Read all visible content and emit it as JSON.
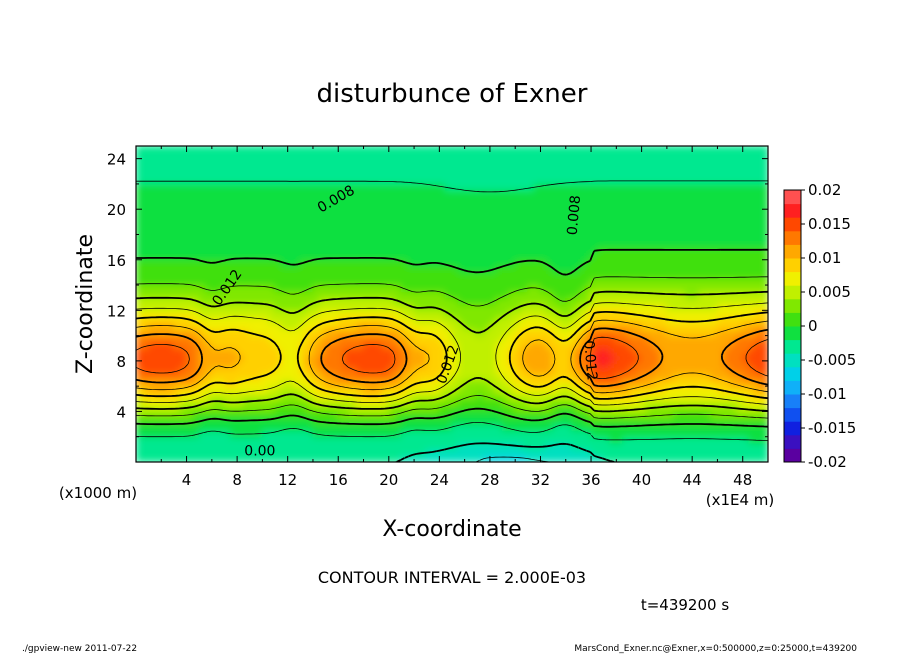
{
  "chart_data": {
    "type": "heatmap",
    "title": "disturbunce of Exner",
    "xlabel": "X-coordinate",
    "ylabel": "Z-coordinate",
    "x_unit_left": "(x1000 m)",
    "x_unit_right": "(x1E4 m)",
    "xlim": [
      0,
      50
    ],
    "ylim": [
      0,
      25
    ],
    "x_ticks": [
      4,
      8,
      12,
      16,
      20,
      24,
      28,
      32,
      36,
      40,
      44,
      48
    ],
    "y_ticks": [
      4,
      8,
      12,
      16,
      20,
      24
    ],
    "contour_interval_text": "CONTOUR INTERVAL = 2.000E-03",
    "time_text": "t=439200 s",
    "contour_labels": [
      {
        "text": "0.008",
        "x": 16,
        "y": 20.5,
        "angle": -30
      },
      {
        "text": "0.012",
        "x": 7.5,
        "y": 13.6,
        "angle": -55
      },
      {
        "text": "0.012",
        "x": 25,
        "y": 7.6,
        "angle": -70
      },
      {
        "text": "0.008",
        "x": 35,
        "y": 19.5,
        "angle": -85
      },
      {
        "text": "0.012",
        "x": 35.6,
        "y": 8,
        "angle": 85
      },
      {
        "text": "0.00",
        "x": 9.8,
        "y": 0.5,
        "angle": 0
      }
    ],
    "colorbar": {
      "levels": [
        -0.02,
        -0.018,
        -0.016,
        -0.014,
        -0.012,
        -0.01,
        -0.008,
        -0.006,
        -0.004,
        -0.002,
        0,
        0.002,
        0.004,
        0.006,
        0.008,
        0.01,
        0.012,
        0.014,
        0.016,
        0.018,
        0.02
      ],
      "colors": [
        "#5a00a0",
        "#3a10c0",
        "#1020e0",
        "#1050f0",
        "#1880f8",
        "#10b0f8",
        "#00d0e8",
        "#00e0c0",
        "#00e890",
        "#10e040",
        "#40e010",
        "#80e800",
        "#c0f000",
        "#f0f000",
        "#ffd000",
        "#ffa800",
        "#ff7800",
        "#ff4800",
        "#ff2020",
        "#ff5050"
      ],
      "tick_labels": [
        "0.02",
        "0.015",
        "0.01",
        "0.005",
        "0",
        "-0.005",
        "-0.01",
        "-0.015",
        "-0.02"
      ]
    }
  },
  "footer": {
    "left": "./gpview-new   2011-07-22",
    "right": "MarsCond_Exner.nc@Exner,x=0:500000,z=0:25000,t=439200"
  }
}
